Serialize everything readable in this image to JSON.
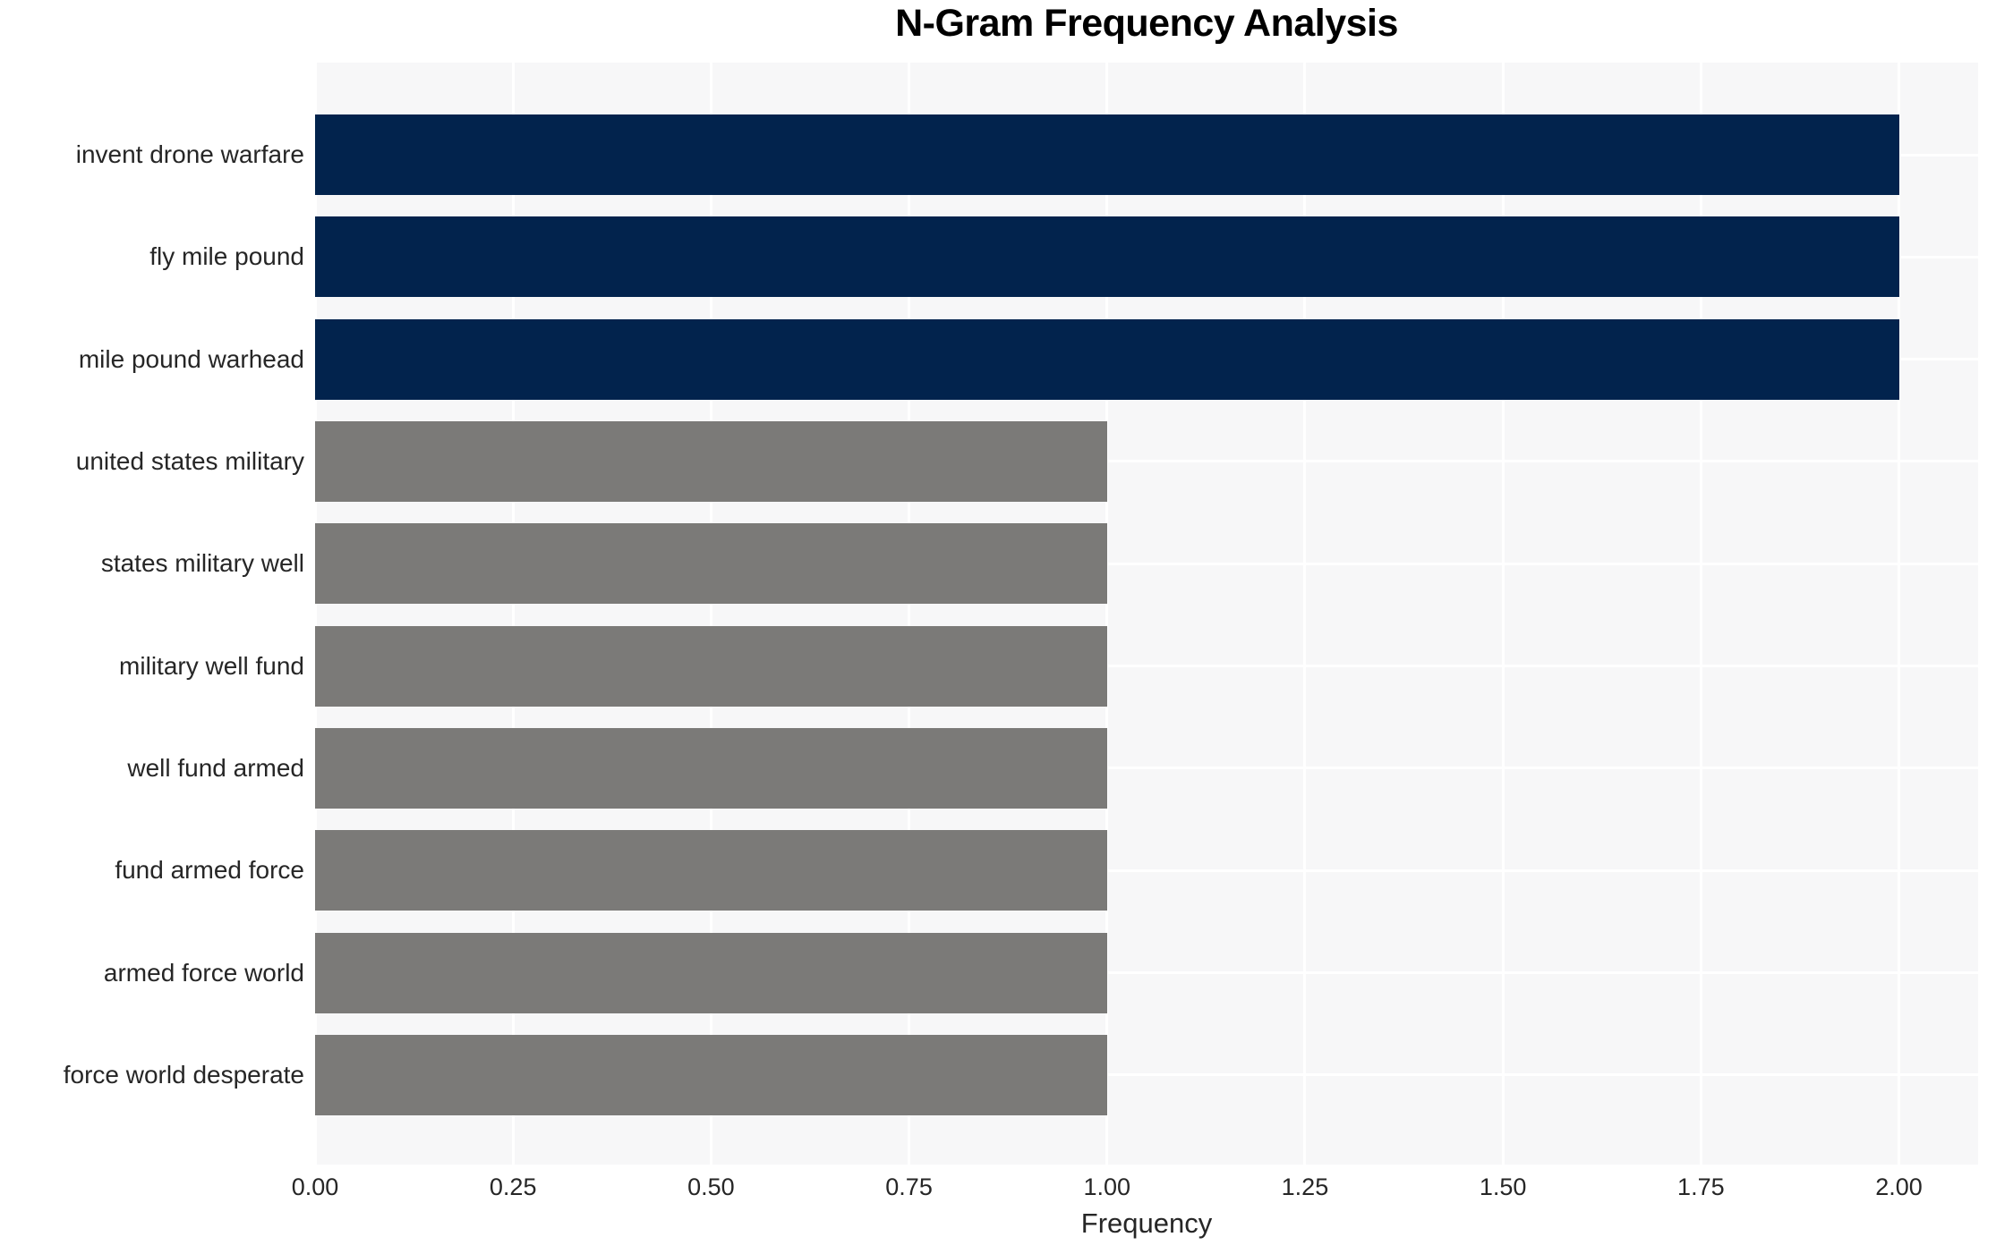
{
  "chart_data": {
    "type": "bar",
    "orientation": "horizontal",
    "title": "N-Gram Frequency Analysis",
    "xlabel": "Frequency",
    "ylabel": "",
    "categories": [
      "invent drone warfare",
      "fly mile pound",
      "mile pound warhead",
      "united states military",
      "states military well",
      "military well fund",
      "well fund armed",
      "fund armed force",
      "armed force world",
      "force world desperate"
    ],
    "values": [
      2,
      2,
      2,
      1,
      1,
      1,
      1,
      1,
      1,
      1
    ],
    "bar_colors": [
      "#02234d",
      "#02234d",
      "#02234d",
      "#7b7a78",
      "#7b7a78",
      "#7b7a78",
      "#7b7a78",
      "#7b7a78",
      "#7b7a78",
      "#7b7a78"
    ],
    "xticks": [
      "0.00",
      "0.25",
      "0.50",
      "0.75",
      "1.00",
      "1.25",
      "1.50",
      "1.75",
      "2.00"
    ],
    "xtick_values": [
      0,
      0.25,
      0.5,
      0.75,
      1.0,
      1.25,
      1.5,
      1.75,
      2.0
    ],
    "xlim": [
      0,
      2.1
    ],
    "grid": true,
    "legend_position": "none",
    "colors": {
      "high_freq_bar": "#02234d",
      "low_freq_bar": "#7b7a78",
      "plot_background": "#f7f7f8",
      "grid_line": "#ffffff",
      "tick_text": "#262626",
      "title_text": "#000000",
      "figure_background": "#ffffff"
    }
  }
}
